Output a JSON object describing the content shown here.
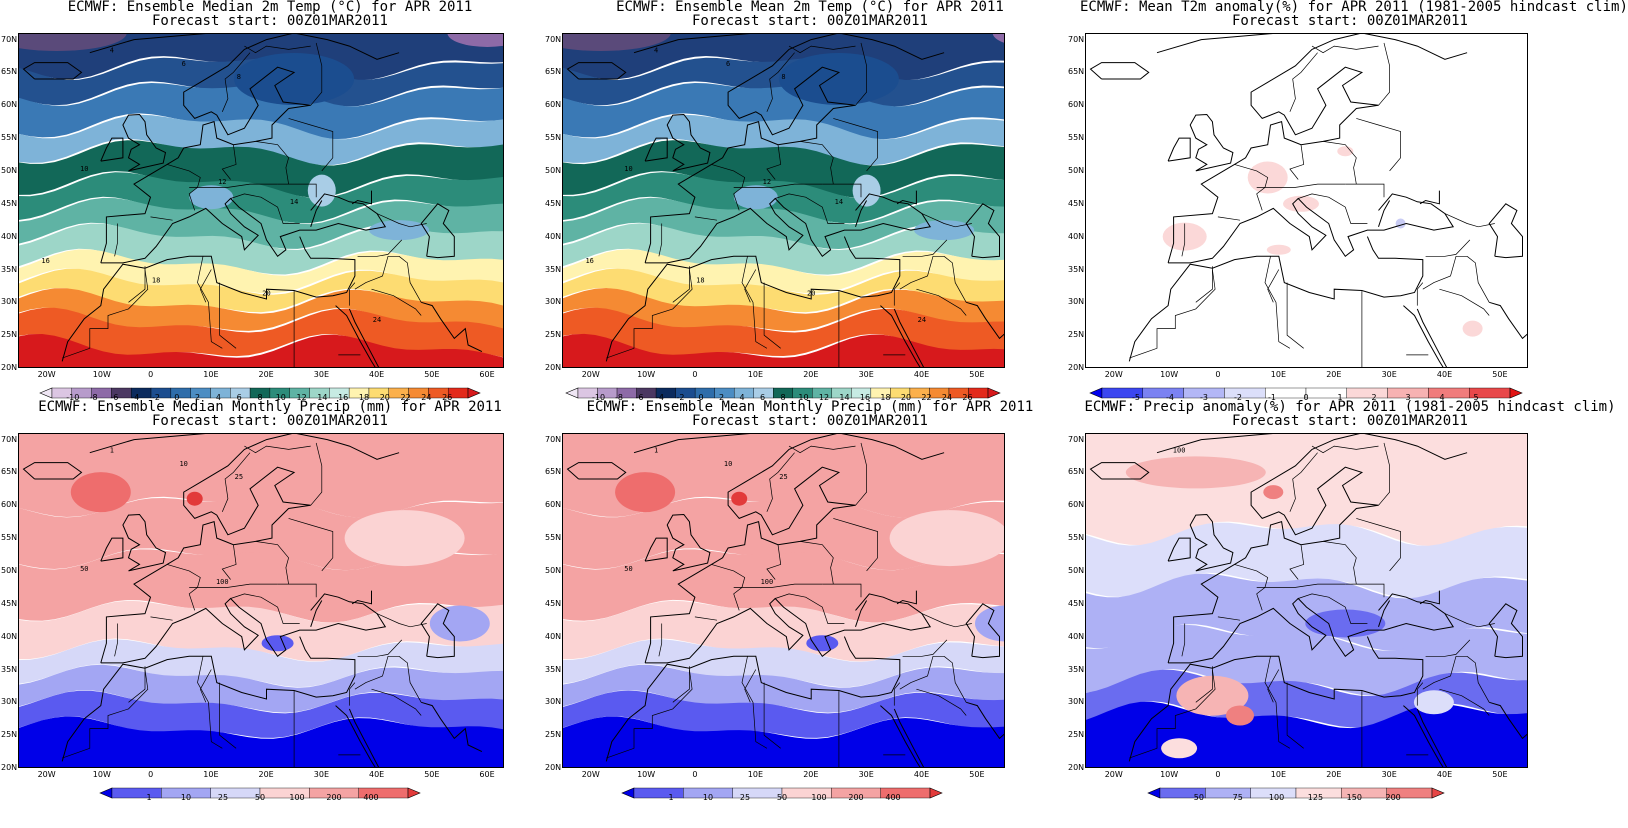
{
  "panels": [
    {
      "id": "t2m-median",
      "title": "ECMWF: Ensemble Median 2m Temp (°C) for APR 2011",
      "subtitle": "Forecast start: 00Z01MAR2011",
      "lon_labels": [
        "20W",
        "10W",
        "0",
        "10E",
        "20E",
        "30E",
        "40E",
        "50E",
        "60E"
      ],
      "lat_labels": [
        "70N",
        "65N",
        "60N",
        "55N",
        "50N",
        "45N",
        "40N",
        "35N",
        "30N",
        "25N",
        "20N"
      ],
      "colorbar": {
        "labels": [
          "-10",
          "-8",
          "-6",
          "-4",
          "-2",
          "0",
          "2",
          "4",
          "6",
          "8",
          "10",
          "12",
          "14",
          "16",
          "18",
          "20",
          "22",
          "24",
          "26"
        ],
        "colors": [
          "#efe6f4",
          "#dcc6e3",
          "#b79bcb",
          "#8d6aa7",
          "#4b3862",
          "#0b2b5e",
          "#1b4d8f",
          "#2e6daa",
          "#4c8dc3",
          "#7eb3d8",
          "#a9cde6",
          "#126858",
          "#2c8c7a",
          "#5fb3a4",
          "#9dd6c8",
          "#c7ebe3",
          "#fff3b0",
          "#fddc72",
          "#fbb04c",
          "#f58a33",
          "#ee5a24",
          "#e32a1b",
          "#d7191c"
        ]
      },
      "contour_labels": [
        "4",
        "6",
        "8",
        "10",
        "12",
        "14",
        "16",
        "18",
        "20",
        "24"
      ]
    },
    {
      "id": "t2m-mean",
      "title": "ECMWF: Ensemble Mean 2m Temp (°C) for APR 2011",
      "subtitle": "Forecast start: 00Z01MAR2011",
      "lon_labels": [
        "20W",
        "10W",
        "0",
        "10E",
        "20E",
        "30E",
        "40E",
        "50E"
      ],
      "lat_labels": [
        "70N",
        "65N",
        "60N",
        "55N",
        "50N",
        "45N",
        "40N",
        "35N",
        "30N",
        "25N",
        "20N"
      ],
      "colorbar": {
        "labels": [
          "-10",
          "-8",
          "-6",
          "-4",
          "-2",
          "0",
          "2",
          "4",
          "6",
          "8",
          "10",
          "12",
          "14",
          "16",
          "18",
          "20",
          "22",
          "24",
          "26"
        ]
      },
      "contour_labels": [
        "4",
        "6",
        "8",
        "10",
        "12",
        "14",
        "16",
        "18",
        "20",
        "24"
      ]
    },
    {
      "id": "t2m-anom",
      "title": "ECMWF: Mean T2m anomaly(%) for APR 2011 (1981-2005 hindcast clim)",
      "subtitle": "Forecast start: 00Z01MAR2011",
      "lon_labels": [
        "20W",
        "10W",
        "0",
        "10E",
        "20E",
        "30E",
        "40E",
        "50E"
      ],
      "lat_labels": [
        "70N",
        "65N",
        "60N",
        "55N",
        "50N",
        "45N",
        "40N",
        "35N",
        "30N",
        "25N",
        "20N"
      ],
      "colorbar": {
        "labels": [
          "-5",
          "-4",
          "-3",
          "-2",
          "-1",
          "0",
          "1",
          "2",
          "3",
          "4",
          "5"
        ],
        "colors": [
          "#0000ee",
          "#3b46f0",
          "#7b82f2",
          "#b3b7f6",
          "#dcdffa",
          "#ffffff",
          "#ffffff",
          "#fbd8d8",
          "#f7b2b2",
          "#f07c7c",
          "#e8484a",
          "#e11414"
        ]
      }
    },
    {
      "id": "precip-median",
      "title": "ECMWF: Ensemble Median Monthly Precip (mm) for APR 2011",
      "subtitle": "Forecast start: 00Z01MAR2011",
      "lon_labels": [
        "20W",
        "10W",
        "0",
        "10E",
        "20E",
        "30E",
        "40E",
        "50E",
        "60E"
      ],
      "lat_labels": [
        "70N",
        "65N",
        "60N",
        "55N",
        "50N",
        "45N",
        "40N",
        "35N",
        "30N",
        "25N",
        "20N"
      ],
      "colorbar": {
        "labels": [
          "1",
          "10",
          "25",
          "50",
          "100",
          "200",
          "400"
        ],
        "colors": [
          "#0000e8",
          "#5a5af0",
          "#a3a6f3",
          "#d6d8f8",
          "#fbd3d3",
          "#f4a3a3",
          "#ee6d6d",
          "#e23a3a"
        ]
      },
      "contour_labels": [
        "1",
        "10",
        "25",
        "50",
        "100"
      ]
    },
    {
      "id": "precip-mean",
      "title": "ECMWF: Ensemble Mean Monthly Precip (mm) for APR 2011",
      "subtitle": "Forecast start: 00Z01MAR2011",
      "lon_labels": [
        "20W",
        "10W",
        "0",
        "10E",
        "20E",
        "30E",
        "40E",
        "50E"
      ],
      "lat_labels": [
        "70N",
        "65N",
        "60N",
        "55N",
        "50N",
        "45N",
        "40N",
        "35N",
        "30N",
        "25N",
        "20N"
      ],
      "colorbar": {
        "labels": [
          "1",
          "10",
          "25",
          "50",
          "100",
          "200",
          "400"
        ]
      },
      "contour_labels": [
        "1",
        "10",
        "25",
        "50",
        "100"
      ]
    },
    {
      "id": "precip-anom",
      "title": "ECMWF: Precip anomaly(%) for APR 2011 (1981-2005 hindcast clim)",
      "subtitle": "Forecast start: 00Z01MAR2011",
      "lon_labels": [
        "20W",
        "10W",
        "0",
        "10E",
        "20E",
        "30E",
        "40E",
        "50E"
      ],
      "lat_labels": [
        "70N",
        "65N",
        "60N",
        "55N",
        "50N",
        "45N",
        "40N",
        "35N",
        "30N",
        "25N",
        "20N"
      ],
      "colorbar": {
        "labels": [
          "50",
          "75",
          "100",
          "125",
          "150",
          "200"
        ],
        "colors": [
          "#0000e8",
          "#6a6cf0",
          "#aeb1f5",
          "#dcdefa",
          "#fcdede",
          "#f6b4b4",
          "#ef8080",
          "#e64545"
        ]
      },
      "contour_labels": [
        "100"
      ]
    }
  ]
}
